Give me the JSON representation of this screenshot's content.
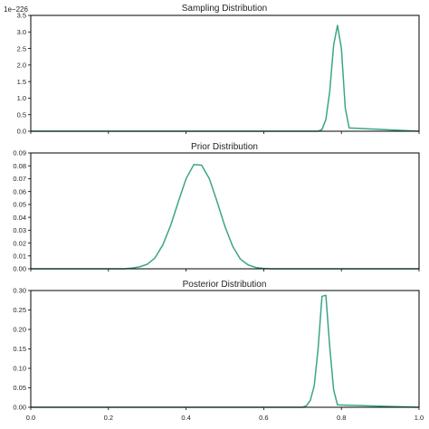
{
  "colors": {
    "line": "#3aa58a",
    "axis": "#000000",
    "text": "#222222"
  },
  "x_tick_labels": [
    "0.0",
    "0.2",
    "0.4",
    "0.6",
    "0.8",
    "1.0"
  ],
  "chart_data": [
    {
      "type": "line",
      "title": "Sampling Distribution",
      "y_scale_label": "1e−226",
      "xlim": [
        0,
        1
      ],
      "ylim": [
        0,
        3.5
      ],
      "yticks": [
        0.0,
        0.5,
        1.0,
        1.5,
        2.0,
        2.5,
        3.0,
        3.5
      ],
      "ytick_labels": [
        "0.0",
        "0.5",
        "1.0",
        "1.5",
        "2.0",
        "2.5",
        "3.0",
        "3.5"
      ],
      "x_axis_labels_shown": false,
      "grid": false,
      "series": [
        {
          "x": [
            0,
            0.74,
            0.75,
            0.76,
            0.77,
            0.78,
            0.79,
            0.8,
            0.81,
            0.82,
            1.0
          ],
          "y": [
            0,
            0,
            0.05,
            0.35,
            1.2,
            2.6,
            3.2,
            2.5,
            0.7,
            0.1,
            0
          ]
        }
      ]
    },
    {
      "type": "line",
      "title": "Prior Distribution",
      "xlim": [
        0,
        1
      ],
      "ylim": [
        0,
        0.09
      ],
      "yticks": [
        0.0,
        0.01,
        0.02,
        0.03,
        0.04,
        0.05,
        0.06,
        0.07,
        0.08,
        0.09
      ],
      "ytick_labels": [
        "0.00",
        "0.01",
        "0.02",
        "0.03",
        "0.04",
        "0.05",
        "0.06",
        "0.07",
        "0.08",
        "0.09"
      ],
      "x_axis_labels_shown": false,
      "grid": false,
      "series": [
        {
          "x": [
            0,
            0.24,
            0.26,
            0.28,
            0.3,
            0.32,
            0.34,
            0.36,
            0.38,
            0.4,
            0.42,
            0.44,
            0.46,
            0.48,
            0.5,
            0.52,
            0.54,
            0.56,
            0.58,
            0.6,
            0.62,
            1.0
          ],
          "y": [
            0,
            0,
            0.0005,
            0.0015,
            0.0035,
            0.0085,
            0.0185,
            0.0335,
            0.052,
            0.07,
            0.081,
            0.0805,
            0.07,
            0.052,
            0.033,
            0.0175,
            0.0075,
            0.003,
            0.001,
            0.0003,
            0,
            0
          ]
        }
      ]
    },
    {
      "type": "line",
      "title": "Posterior Distribution",
      "xlim": [
        0,
        1
      ],
      "ylim": [
        0,
        0.3
      ],
      "yticks": [
        0.0,
        0.05,
        0.1,
        0.15,
        0.2,
        0.25,
        0.3
      ],
      "ytick_labels": [
        "0.00",
        "0.05",
        "0.10",
        "0.15",
        "0.20",
        "0.25",
        "0.30"
      ],
      "x_axis_labels_shown": true,
      "grid": false,
      "series": [
        {
          "x": [
            0,
            0.7,
            0.71,
            0.72,
            0.73,
            0.74,
            0.75,
            0.76,
            0.77,
            0.78,
            0.79,
            1.0
          ],
          "y": [
            0,
            0,
            0.004,
            0.018,
            0.055,
            0.15,
            0.285,
            0.288,
            0.155,
            0.045,
            0.006,
            0
          ]
        }
      ]
    }
  ]
}
